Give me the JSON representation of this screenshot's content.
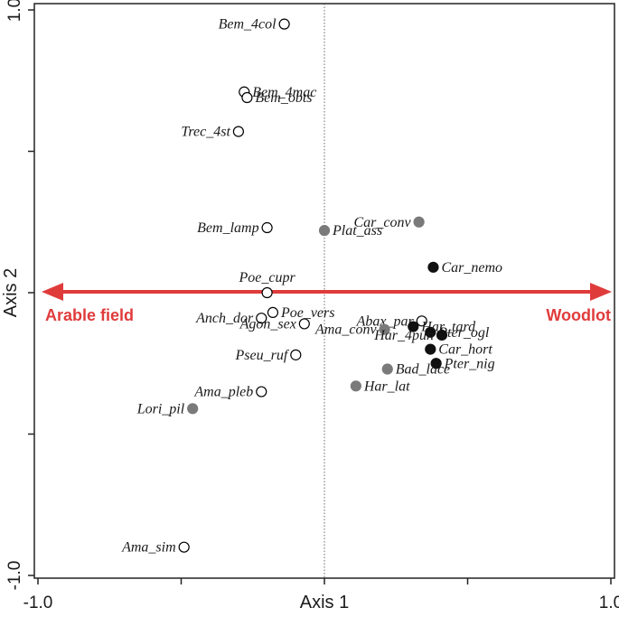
{
  "chart_data": {
    "type": "scatter",
    "xlabel": "Axis 1",
    "ylabel": "Axis 2",
    "xlim": [
      -1.0,
      1.0
    ],
    "ylim": [
      -1.0,
      1.0
    ],
    "x_tick_labels": [
      "-1.0",
      "1.0"
    ],
    "y_tick_labels": [
      "-1.0",
      "1.0"
    ],
    "grid": false,
    "reference_line": {
      "x": 0,
      "style": "dotted"
    },
    "arrow": {
      "left_label": "Arable field",
      "right_label": "Woodlot",
      "color": "#e03b3b"
    },
    "groups": {
      "open": {
        "fill": "#ffffff",
        "stroke": "#000000"
      },
      "gray": {
        "fill": "#7a7a7a",
        "stroke": "#7a7a7a"
      },
      "black": {
        "fill": "#111111",
        "stroke": "#111111"
      }
    },
    "points": [
      {
        "label": "Bem_4col",
        "x": -0.14,
        "y": 0.95,
        "group": "open",
        "anchor": "end"
      },
      {
        "label": "Bem_4mac",
        "x": -0.28,
        "y": 0.71,
        "group": "open",
        "anchor": "start"
      },
      {
        "label": "Bem_obts",
        "x": -0.27,
        "y": 0.69,
        "group": "open",
        "anchor": "start"
      },
      {
        "label": "Trec_4st",
        "x": -0.3,
        "y": 0.57,
        "group": "open",
        "anchor": "end"
      },
      {
        "label": "Bem_lamp",
        "x": -0.2,
        "y": 0.23,
        "group": "open",
        "anchor": "end"
      },
      {
        "label": "Plat_ass",
        "x": 0.0,
        "y": 0.22,
        "group": "gray",
        "anchor": "start"
      },
      {
        "label": "Car_conv",
        "x": 0.33,
        "y": 0.25,
        "group": "gray",
        "anchor": "end"
      },
      {
        "label": "Car_nemo",
        "x": 0.38,
        "y": 0.09,
        "group": "black",
        "anchor": "start"
      },
      {
        "label": "Poe_cupr",
        "x": -0.2,
        "y": 0.0,
        "group": "open",
        "anchor": "middle"
      },
      {
        "label": "Poe_vers",
        "x": -0.18,
        "y": -0.07,
        "group": "open",
        "anchor": "start"
      },
      {
        "label": "Anch_dor",
        "x": -0.22,
        "y": -0.09,
        "group": "open",
        "anchor": "end"
      },
      {
        "label": "Agon_sex",
        "x": -0.07,
        "y": -0.11,
        "group": "open",
        "anchor": "end"
      },
      {
        "label": "Pseu_ruf",
        "x": -0.1,
        "y": -0.22,
        "group": "open",
        "anchor": "end"
      },
      {
        "label": "Abax_par",
        "x": 0.34,
        "y": -0.1,
        "group": "open",
        "anchor": "end"
      },
      {
        "label": "Ama_conv",
        "x": 0.21,
        "y": -0.13,
        "group": "gray",
        "anchor": "end"
      },
      {
        "label": "Har_tard",
        "x": 0.31,
        "y": -0.12,
        "group": "black",
        "anchor": "start"
      },
      {
        "label": "Pter_ogl",
        "x": 0.37,
        "y": -0.14,
        "group": "black",
        "anchor": "start"
      },
      {
        "label": "Har_4pun",
        "x": 0.41,
        "y": -0.15,
        "group": "black",
        "anchor": "end"
      },
      {
        "label": "Car_hort",
        "x": 0.37,
        "y": -0.2,
        "group": "black",
        "anchor": "start"
      },
      {
        "label": "Pter_nig",
        "x": 0.39,
        "y": -0.25,
        "group": "black",
        "anchor": "start"
      },
      {
        "label": "Bad_lace",
        "x": 0.22,
        "y": -0.27,
        "group": "gray",
        "anchor": "start"
      },
      {
        "label": "Har_lat",
        "x": 0.11,
        "y": -0.33,
        "group": "gray",
        "anchor": "start"
      },
      {
        "label": "Ama_pleb",
        "x": -0.22,
        "y": -0.35,
        "group": "open",
        "anchor": "end"
      },
      {
        "label": "Lori_pil",
        "x": -0.46,
        "y": -0.41,
        "group": "gray",
        "anchor": "end"
      },
      {
        "label": "Ama_sim",
        "x": -0.49,
        "y": -0.9,
        "group": "open",
        "anchor": "end"
      }
    ]
  }
}
